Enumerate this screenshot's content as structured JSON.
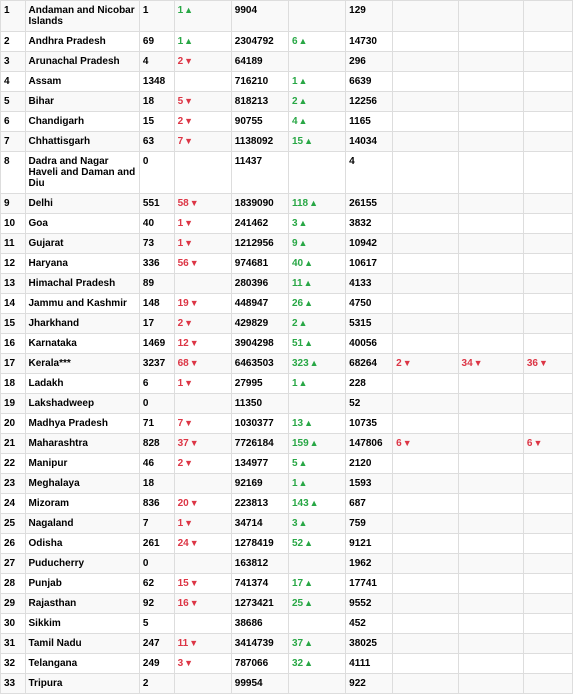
{
  "colors": {
    "up": "#28a745",
    "down": "#dc3545",
    "border": "#ddd",
    "row_odd": "#f9f9f9",
    "row_even": "#ffffff",
    "text": "#000000"
  },
  "font_size": 10,
  "rows": [
    {
      "sno": "1",
      "state": "Andaman and Nicobar Islands",
      "c2": "1",
      "c3": {
        "v": "1",
        "d": "up"
      },
      "c4": "9904",
      "c5": null,
      "c6": "129",
      "c7": null,
      "c8": null,
      "c9": null
    },
    {
      "sno": "2",
      "state": "Andhra Pradesh",
      "c2": "69",
      "c3": {
        "v": "1",
        "d": "up"
      },
      "c4": "2304792",
      "c5": {
        "v": "6",
        "d": "up"
      },
      "c6": "14730",
      "c7": null,
      "c8": null,
      "c9": null
    },
    {
      "sno": "3",
      "state": "Arunachal Pradesh",
      "c2": "4",
      "c3": {
        "v": "2",
        "d": "down"
      },
      "c4": "64189",
      "c5": null,
      "c6": "296",
      "c7": null,
      "c8": null,
      "c9": null
    },
    {
      "sno": "4",
      "state": "Assam",
      "c2": "1348",
      "c3": null,
      "c4": "716210",
      "c5": {
        "v": "1",
        "d": "up"
      },
      "c6": "6639",
      "c7": null,
      "c8": null,
      "c9": null
    },
    {
      "sno": "5",
      "state": "Bihar",
      "c2": "18",
      "c3": {
        "v": "5",
        "d": "down"
      },
      "c4": "818213",
      "c5": {
        "v": "2",
        "d": "up"
      },
      "c6": "12256",
      "c7": null,
      "c8": null,
      "c9": null
    },
    {
      "sno": "6",
      "state": "Chandigarh",
      "c2": "15",
      "c3": {
        "v": "2",
        "d": "down"
      },
      "c4": "90755",
      "c5": {
        "v": "4",
        "d": "up"
      },
      "c6": "1165",
      "c7": null,
      "c8": null,
      "c9": null
    },
    {
      "sno": "7",
      "state": "Chhattisgarh",
      "c2": "63",
      "c3": {
        "v": "7",
        "d": "down"
      },
      "c4": "1138092",
      "c5": {
        "v": "15",
        "d": "up"
      },
      "c6": "14034",
      "c7": null,
      "c8": null,
      "c9": null
    },
    {
      "sno": "8",
      "state": "Dadra and Nagar Haveli and Daman and Diu",
      "c2": "0",
      "c3": null,
      "c4": "11437",
      "c5": null,
      "c6": "4",
      "c7": null,
      "c8": null,
      "c9": null
    },
    {
      "sno": "9",
      "state": "Delhi",
      "c2": "551",
      "c3": {
        "v": "58",
        "d": "down"
      },
      "c4": "1839090",
      "c5": {
        "v": "118",
        "d": "up"
      },
      "c6": "26155",
      "c7": null,
      "c8": null,
      "c9": null
    },
    {
      "sno": "10",
      "state": "Goa",
      "c2": "40",
      "c3": {
        "v": "1",
        "d": "down"
      },
      "c4": "241462",
      "c5": {
        "v": "3",
        "d": "up"
      },
      "c6": "3832",
      "c7": null,
      "c8": null,
      "c9": null
    },
    {
      "sno": "11",
      "state": "Gujarat",
      "c2": "73",
      "c3": {
        "v": "1",
        "d": "down"
      },
      "c4": "1212956",
      "c5": {
        "v": "9",
        "d": "up"
      },
      "c6": "10942",
      "c7": null,
      "c8": null,
      "c9": null
    },
    {
      "sno": "12",
      "state": "Haryana",
      "c2": "336",
      "c3": {
        "v": "56",
        "d": "down"
      },
      "c4": "974681",
      "c5": {
        "v": "40",
        "d": "up"
      },
      "c6": "10617",
      "c7": null,
      "c8": null,
      "c9": null
    },
    {
      "sno": "13",
      "state": "Himachal Pradesh",
      "c2": "89",
      "c3": null,
      "c4": "280396",
      "c5": {
        "v": "11",
        "d": "up"
      },
      "c6": "4133",
      "c7": null,
      "c8": null,
      "c9": null
    },
    {
      "sno": "14",
      "state": "Jammu and Kashmir",
      "c2": "148",
      "c3": {
        "v": "19",
        "d": "down"
      },
      "c4": "448947",
      "c5": {
        "v": "26",
        "d": "up"
      },
      "c6": "4750",
      "c7": null,
      "c8": null,
      "c9": null
    },
    {
      "sno": "15",
      "state": "Jharkhand",
      "c2": "17",
      "c3": {
        "v": "2",
        "d": "down"
      },
      "c4": "429829",
      "c5": {
        "v": "2",
        "d": "up"
      },
      "c6": "5315",
      "c7": null,
      "c8": null,
      "c9": null
    },
    {
      "sno": "16",
      "state": "Karnataka",
      "c2": "1469",
      "c3": {
        "v": "12",
        "d": "down"
      },
      "c4": "3904298",
      "c5": {
        "v": "51",
        "d": "up"
      },
      "c6": "40056",
      "c7": null,
      "c8": null,
      "c9": null
    },
    {
      "sno": "17",
      "state": "Kerala***",
      "c2": "3237",
      "c3": {
        "v": "68",
        "d": "down"
      },
      "c4": "6463503",
      "c5": {
        "v": "323",
        "d": "up"
      },
      "c6": "68264",
      "c7": {
        "v": "2",
        "d": "down"
      },
      "c8": {
        "v": "34",
        "d": "down"
      },
      "c9": {
        "v": "36",
        "d": "down"
      }
    },
    {
      "sno": "18",
      "state": "Ladakh",
      "c2": "6",
      "c3": {
        "v": "1",
        "d": "down"
      },
      "c4": "27995",
      "c5": {
        "v": "1",
        "d": "up"
      },
      "c6": "228",
      "c7": null,
      "c8": null,
      "c9": null
    },
    {
      "sno": "19",
      "state": "Lakshadweep",
      "c2": "0",
      "c3": null,
      "c4": "11350",
      "c5": null,
      "c6": "52",
      "c7": null,
      "c8": null,
      "c9": null
    },
    {
      "sno": "20",
      "state": "Madhya Pradesh",
      "c2": "71",
      "c3": {
        "v": "7",
        "d": "down"
      },
      "c4": "1030377",
      "c5": {
        "v": "13",
        "d": "up"
      },
      "c6": "10735",
      "c7": null,
      "c8": null,
      "c9": null
    },
    {
      "sno": "21",
      "state": "Maharashtra",
      "c2": "828",
      "c3": {
        "v": "37",
        "d": "down"
      },
      "c4": "7726184",
      "c5": {
        "v": "159",
        "d": "up"
      },
      "c6": "147806",
      "c7": {
        "v": "6",
        "d": "down"
      },
      "c8": null,
      "c9": {
        "v": "6",
        "d": "down"
      }
    },
    {
      "sno": "22",
      "state": "Manipur",
      "c2": "46",
      "c3": {
        "v": "2",
        "d": "down"
      },
      "c4": "134977",
      "c5": {
        "v": "5",
        "d": "up"
      },
      "c6": "2120",
      "c7": null,
      "c8": null,
      "c9": null
    },
    {
      "sno": "23",
      "state": "Meghalaya",
      "c2": "18",
      "c3": null,
      "c4": "92169",
      "c5": {
        "v": "1",
        "d": "up"
      },
      "c6": "1593",
      "c7": null,
      "c8": null,
      "c9": null
    },
    {
      "sno": "24",
      "state": "Mizoram",
      "c2": "836",
      "c3": {
        "v": "20",
        "d": "down"
      },
      "c4": "223813",
      "c5": {
        "v": "143",
        "d": "up"
      },
      "c6": "687",
      "c7": null,
      "c8": null,
      "c9": null
    },
    {
      "sno": "25",
      "state": "Nagaland",
      "c2": "7",
      "c3": {
        "v": "1",
        "d": "down"
      },
      "c4": "34714",
      "c5": {
        "v": "3",
        "d": "up"
      },
      "c6": "759",
      "c7": null,
      "c8": null,
      "c9": null
    },
    {
      "sno": "26",
      "state": "Odisha",
      "c2": "261",
      "c3": {
        "v": "24",
        "d": "down"
      },
      "c4": "1278419",
      "c5": {
        "v": "52",
        "d": "up"
      },
      "c6": "9121",
      "c7": null,
      "c8": null,
      "c9": null
    },
    {
      "sno": "27",
      "state": "Puducherry",
      "c2": "0",
      "c3": null,
      "c4": "163812",
      "c5": null,
      "c6": "1962",
      "c7": null,
      "c8": null,
      "c9": null
    },
    {
      "sno": "28",
      "state": "Punjab",
      "c2": "62",
      "c3": {
        "v": "15",
        "d": "down"
      },
      "c4": "741374",
      "c5": {
        "v": "17",
        "d": "up"
      },
      "c6": "17741",
      "c7": null,
      "c8": null,
      "c9": null
    },
    {
      "sno": "29",
      "state": "Rajasthan",
      "c2": "92",
      "c3": {
        "v": "16",
        "d": "down"
      },
      "c4": "1273421",
      "c5": {
        "v": "25",
        "d": "up"
      },
      "c6": "9552",
      "c7": null,
      "c8": null,
      "c9": null
    },
    {
      "sno": "30",
      "state": "Sikkim",
      "c2": "5",
      "c3": null,
      "c4": "38686",
      "c5": null,
      "c6": "452",
      "c7": null,
      "c8": null,
      "c9": null
    },
    {
      "sno": "31",
      "state": "Tamil Nadu",
      "c2": "247",
      "c3": {
        "v": "11",
        "d": "down"
      },
      "c4": "3414739",
      "c5": {
        "v": "37",
        "d": "up"
      },
      "c6": "38025",
      "c7": null,
      "c8": null,
      "c9": null
    },
    {
      "sno": "32",
      "state": "Telangana",
      "c2": "249",
      "c3": {
        "v": "3",
        "d": "down"
      },
      "c4": "787066",
      "c5": {
        "v": "32",
        "d": "up"
      },
      "c6": "4111",
      "c7": null,
      "c8": null,
      "c9": null
    },
    {
      "sno": "33",
      "state": "Tripura",
      "c2": "2",
      "c3": null,
      "c4": "99954",
      "c5": null,
      "c6": "922",
      "c7": null,
      "c8": null,
      "c9": null
    }
  ]
}
